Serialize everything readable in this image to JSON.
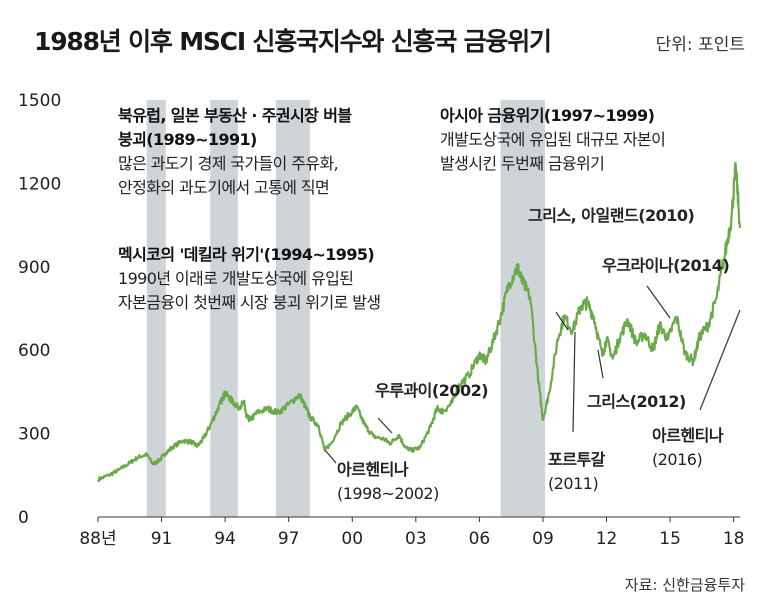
{
  "title": "1988년 이후 MSCI 신흥국지수와 신흥국 금융위기",
  "unit": "단위: 포인트",
  "source": "자료: 신한금융투자",
  "chart_data": {
    "type": "line",
    "title": "1988년 이후 MSCI 신흥국지수와 신흥국 금융위기",
    "ylim": [
      0,
      1500
    ],
    "xlim": [
      1988,
      2018.3
    ],
    "y_ticks": [
      "1500",
      "1200",
      "900",
      "600",
      "300",
      "0"
    ],
    "x_ticks": [
      {
        "label": "88년",
        "year": 1988
      },
      {
        "label": "91",
        "year": 1991
      },
      {
        "label": "94",
        "year": 1994
      },
      {
        "label": "97",
        "year": 1997
      },
      {
        "label": "00",
        "year": 2000
      },
      {
        "label": "03",
        "year": 2003
      },
      {
        "label": "06",
        "year": 2006
      },
      {
        "label": "09",
        "year": 2009
      },
      {
        "label": "12",
        "year": 2012
      },
      {
        "label": "15",
        "year": 2015
      },
      {
        "label": "18",
        "year": 2018
      }
    ],
    "crisis_bands": [
      {
        "from": 1990.3,
        "to": 1991.2
      },
      {
        "from": 1993.3,
        "to": 1994.6
      },
      {
        "from": 1996.4,
        "to": 1998.0
      },
      {
        "from": 2007.0,
        "to": 2009.1
      }
    ],
    "series": [
      {
        "color": "#6aaa4a",
        "points": [
          [
            1988.0,
            135
          ],
          [
            1988.5,
            150
          ],
          [
            1989.0,
            170
          ],
          [
            1989.5,
            195
          ],
          [
            1989.9,
            215
          ],
          [
            1990.3,
            225
          ],
          [
            1990.6,
            190
          ],
          [
            1990.9,
            205
          ],
          [
            1991.2,
            230
          ],
          [
            1991.5,
            250
          ],
          [
            1992.0,
            275
          ],
          [
            1992.4,
            270
          ],
          [
            1992.7,
            255
          ],
          [
            1993.0,
            285
          ],
          [
            1993.3,
            330
          ],
          [
            1993.6,
            380
          ],
          [
            1993.9,
            430
          ],
          [
            1994.0,
            445
          ],
          [
            1994.3,
            420
          ],
          [
            1994.6,
            395
          ],
          [
            1994.9,
            410
          ],
          [
            1995.0,
            360
          ],
          [
            1995.2,
            350
          ],
          [
            1995.5,
            375
          ],
          [
            1996.0,
            390
          ],
          [
            1996.5,
            375
          ],
          [
            1997.0,
            405
          ],
          [
            1997.5,
            440
          ],
          [
            1997.8,
            395
          ],
          [
            1998.0,
            360
          ],
          [
            1998.4,
            330
          ],
          [
            1998.7,
            240
          ],
          [
            1999.0,
            265
          ],
          [
            1999.5,
            340
          ],
          [
            2000.0,
            380
          ],
          [
            2000.2,
            395
          ],
          [
            2000.6,
            330
          ],
          [
            2001.0,
            290
          ],
          [
            2001.5,
            280
          ],
          [
            2001.8,
            265
          ],
          [
            2002.2,
            295
          ],
          [
            2002.5,
            250
          ],
          [
            2002.8,
            240
          ],
          [
            2003.2,
            250
          ],
          [
            2003.7,
            325
          ],
          [
            2004.0,
            390
          ],
          [
            2004.3,
            380
          ],
          [
            2004.7,
            410
          ],
          [
            2005.0,
            470
          ],
          [
            2005.5,
            510
          ],
          [
            2006.0,
            585
          ],
          [
            2006.3,
            560
          ],
          [
            2006.6,
            620
          ],
          [
            2007.0,
            720
          ],
          [
            2007.4,
            840
          ],
          [
            2007.8,
            900
          ],
          [
            2008.0,
            850
          ],
          [
            2008.4,
            790
          ],
          [
            2008.8,
            480
          ],
          [
            2009.0,
            350
          ],
          [
            2009.3,
            450
          ],
          [
            2009.7,
            640
          ],
          [
            2010.0,
            720
          ],
          [
            2010.4,
            670
          ],
          [
            2010.8,
            760
          ],
          [
            2011.1,
            770
          ],
          [
            2011.4,
            720
          ],
          [
            2011.8,
            580
          ],
          [
            2012.0,
            640
          ],
          [
            2012.3,
            570
          ],
          [
            2012.6,
            640
          ],
          [
            2013.0,
            710
          ],
          [
            2013.4,
            625
          ],
          [
            2013.8,
            660
          ],
          [
            2014.2,
            600
          ],
          [
            2014.5,
            690
          ],
          [
            2014.9,
            640
          ],
          [
            2015.3,
            720
          ],
          [
            2015.7,
            590
          ],
          [
            2016.1,
            560
          ],
          [
            2016.4,
            650
          ],
          [
            2016.8,
            690
          ],
          [
            2017.2,
            790
          ],
          [
            2017.6,
            950
          ],
          [
            2017.9,
            1080
          ],
          [
            2018.1,
            1260
          ],
          [
            2018.3,
            1040
          ]
        ]
      }
    ],
    "annotations": [
      {
        "lines": [
          "북유럽, 일본 부동산 · 주권시장 버블",
          "붕괴(1989~1991)",
          "많은 과도기 경제 국가들이 주유화,",
          "안정화의 과도기에서 고통에 직면"
        ]
      },
      {
        "lines": [
          "멕시코의 '데킬라 위기'(1994~1995)",
          "1990년 이래로 개발도상국에 유입된",
          "자본금융이 첫번째 시장 붕괴 위기로 발생"
        ]
      },
      {
        "lines": [
          "아시아 금융위기(1997~1999)",
          "개발도상국에 유입된 대규모 자본이",
          "발생시킨 두번째 금융위기"
        ]
      },
      {
        "lines": [
          "그리스, 아일랜드(2010)"
        ]
      },
      {
        "lines": [
          "우크라이나(2014)"
        ]
      },
      {
        "lines": [
          "우루과이(2002)"
        ]
      },
      {
        "lines": [
          "아르헨티나",
          "(1998~2002)"
        ]
      },
      {
        "lines": [
          "포르투갈",
          "(2011)"
        ]
      },
      {
        "lines": [
          "그리스(2012)"
        ]
      },
      {
        "lines": [
          "아르헨티나",
          "(2016)"
        ]
      }
    ]
  }
}
